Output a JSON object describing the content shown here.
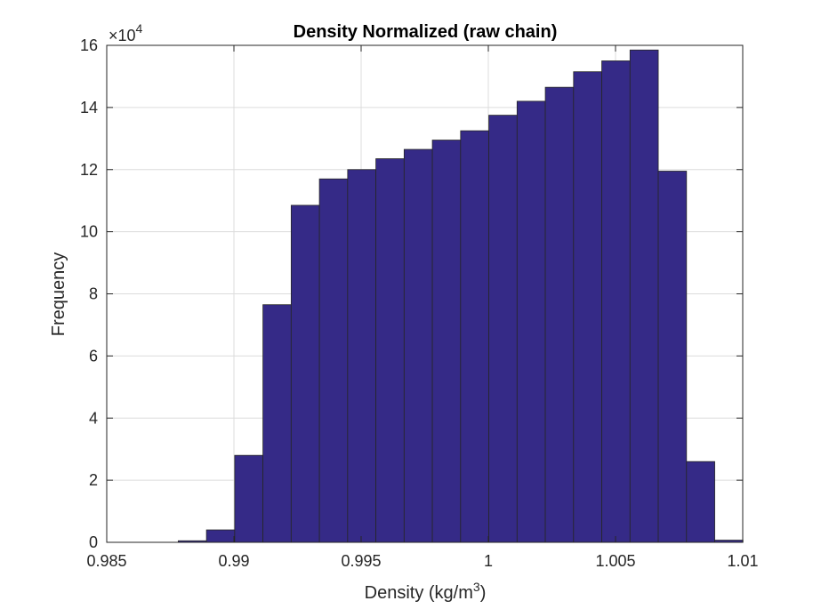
{
  "chart_data": {
    "type": "bar",
    "title": "Density Normalized (raw  chain)",
    "xlabel": "Density (kg/m",
    "xlabel_sup": "3",
    "xlabel_suffix": ")",
    "ylabel": "Frequency",
    "y_multiplier": "×10",
    "y_multiplier_exp": "4",
    "xlim": [
      0.985,
      1.01
    ],
    "ylim": [
      0,
      16
    ],
    "xticks": [
      0.985,
      0.99,
      0.995,
      1,
      1.005,
      1.01
    ],
    "xtick_labels": [
      "0.985",
      "0.99",
      "0.995",
      "1",
      "1.005",
      "1.01"
    ],
    "yticks": [
      0,
      2,
      4,
      6,
      8,
      10,
      12,
      14,
      16
    ],
    "ytick_labels": [
      "0",
      "2",
      "4",
      "6",
      "8",
      "10",
      "12",
      "14",
      "16"
    ],
    "grid": true,
    "bin_edges": [
      0.98781,
      0.98892,
      0.99003,
      0.99114,
      0.99225,
      0.99336,
      0.99447,
      0.99558,
      0.99669,
      0.9978,
      0.99891,
      1.00002,
      1.00113,
      1.00224,
      1.00335,
      1.00446,
      1.00557,
      1.00668,
      1.00779,
      1.0089,
      1.01001
    ],
    "values": [
      0.05,
      0.4,
      2.8,
      7.65,
      10.85,
      11.7,
      12.0,
      12.35,
      12.65,
      12.95,
      13.25,
      13.75,
      14.2,
      14.65,
      15.15,
      15.5,
      15.85,
      11.95,
      2.6,
      0.07
    ],
    "bar_color": "#352a87",
    "edge_color": "#262626"
  }
}
